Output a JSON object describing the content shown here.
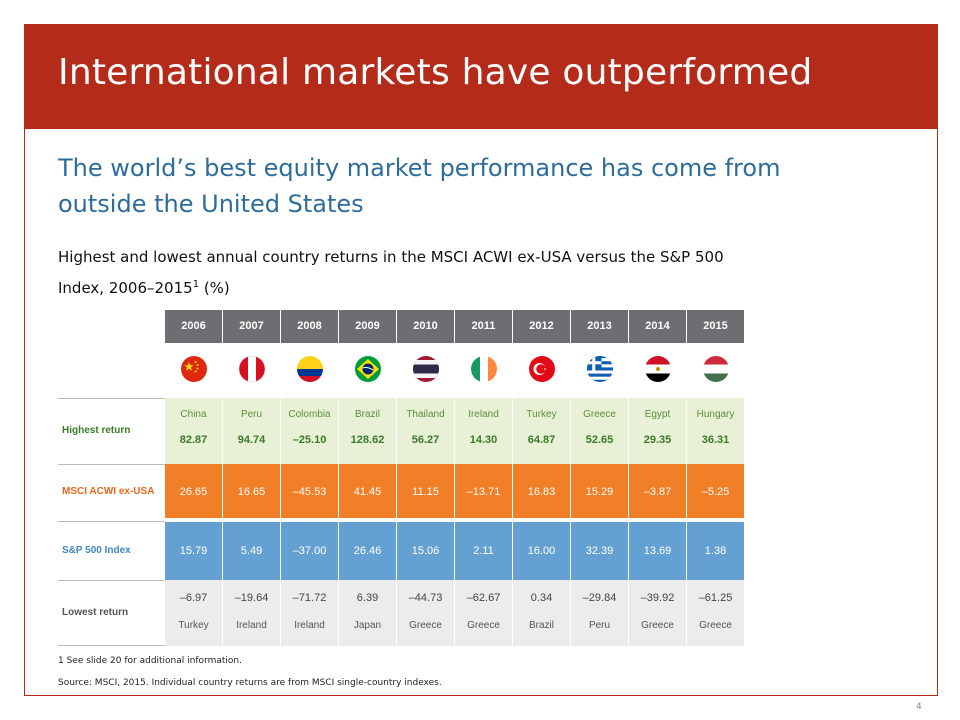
{
  "slide": {
    "title": "International markets have outperformed",
    "subtitle": "The world’s best equity market performance has come from outside the United States",
    "description": "Highest and lowest annual country returns in the MSCI ACWI ex-USA versus the S&P 500 Index, 2006–2015",
    "description_sup": "1",
    "description_unit": " (%)",
    "footnote": "1 See slide 20 for additional information.",
    "source": "Source: MSCI, 2015. Individual country returns are from MSCI single-country indexes.",
    "page_number": "4"
  },
  "table": {
    "row_labels": {
      "highest": "Highest return",
      "msci": "MSCI ACWI ex-USA",
      "sp500": "S&P 500 Index",
      "lowest": "Lowest return"
    },
    "years": [
      {
        "year": "2006",
        "flag": "china-flag-icon",
        "hi_country": "China",
        "hi_value": "82.87",
        "msci": "26.65",
        "sp": "15.79",
        "lo_value": "–6.97",
        "lo_country": "Turkey"
      },
      {
        "year": "2007",
        "flag": "peru-flag-icon",
        "hi_country": "Peru",
        "hi_value": "94.74",
        "msci": "16.65",
        "sp": "5.49",
        "lo_value": "–19.64",
        "lo_country": "Ireland"
      },
      {
        "year": "2008",
        "flag": "colombia-flag-icon",
        "hi_country": "Colombia",
        "hi_value": "–25.10",
        "msci": "–45.53",
        "sp": "–37.00",
        "lo_value": "–71.72",
        "lo_country": "Ireland"
      },
      {
        "year": "2009",
        "flag": "brazil-flag-icon",
        "hi_country": "Brazil",
        "hi_value": "128.62",
        "msci": "41.45",
        "sp": "26.46",
        "lo_value": "6.39",
        "lo_country": "Japan"
      },
      {
        "year": "2010",
        "flag": "thailand-flag-icon",
        "hi_country": "Thailand",
        "hi_value": "56.27",
        "msci": "11.15",
        "sp": "15.06",
        "lo_value": "–44.73",
        "lo_country": "Greece"
      },
      {
        "year": "2011",
        "flag": "ireland-flag-icon",
        "hi_country": "Ireland",
        "hi_value": "14.30",
        "msci": "–13.71",
        "sp": "2.11",
        "lo_value": "–62.67",
        "lo_country": "Greece"
      },
      {
        "year": "2012",
        "flag": "turkey-flag-icon",
        "hi_country": "Turkey",
        "hi_value": "64.87",
        "msci": "16.83",
        "sp": "16.00",
        "lo_value": "0.34",
        "lo_country": "Brazil"
      },
      {
        "year": "2013",
        "flag": "greece-flag-icon",
        "hi_country": "Greece",
        "hi_value": "52.65",
        "msci": "15.29",
        "sp": "32.39",
        "lo_value": "–29.84",
        "lo_country": "Peru"
      },
      {
        "year": "2014",
        "flag": "egypt-flag-icon",
        "hi_country": "Egypt",
        "hi_value": "29.35",
        "msci": "–3.87",
        "sp": "13.69",
        "lo_value": "–39.92",
        "lo_country": "Greece"
      },
      {
        "year": "2015",
        "flag": "hungary-flag-icon",
        "hi_country": "Hungary",
        "hi_value": "36.31",
        "msci": "–5.25",
        "sp": "1.38",
        "lo_value": "–61.25",
        "lo_country": "Greece"
      }
    ]
  },
  "colors": {
    "title_bar": "#b42b1a",
    "subtitle": "#2e6d99",
    "header": "#6d6e71",
    "highest_bg": "#e8f0d6",
    "msci_bg": "#f07f28",
    "sp_bg": "#64a1d2",
    "lowest_bg": "#ececec"
  }
}
